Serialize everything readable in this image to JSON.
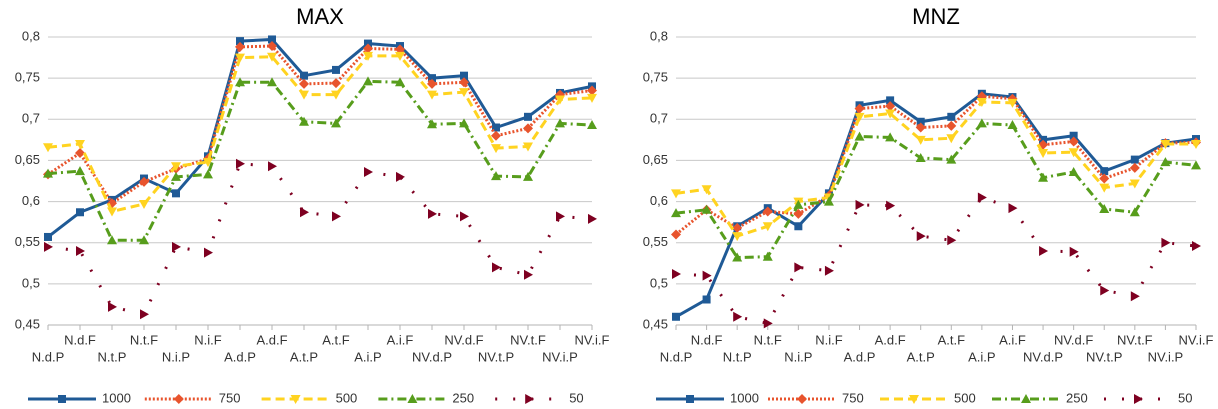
{
  "chart_data": [
    {
      "type": "line",
      "title": "MAX",
      "categories": [
        "N.d.P",
        "N.d.F",
        "N.t.P",
        "N.t.F",
        "N.i.P",
        "N.i.F",
        "A.d.P",
        "A.d.F",
        "A.t.P",
        "A.t.F",
        "A.i.P",
        "A.i.F",
        "NV.d.P",
        "NV.d.F",
        "NV.t.P",
        "NV.t.F",
        "NV.i.P",
        "NV.i.F"
      ],
      "ylim": [
        0.45,
        0.8
      ],
      "yticks": [
        {
          "value": 0.45,
          "label": "0,45"
        },
        {
          "value": 0.5,
          "label": "0,5"
        },
        {
          "value": 0.55,
          "label": "0,55"
        },
        {
          "value": 0.6,
          "label": "0,6"
        },
        {
          "value": 0.65,
          "label": "0,65"
        },
        {
          "value": 0.7,
          "label": "0,7"
        },
        {
          "value": 0.75,
          "label": "0,75"
        },
        {
          "value": 0.8,
          "label": "0,8"
        }
      ],
      "grid": true,
      "legend": "bottom",
      "series": [
        {
          "name": "1000",
          "color": "#1f5a96",
          "marker": "square",
          "dash": "solid",
          "values": [
            0.557,
            0.587,
            0.602,
            0.628,
            0.61,
            0.655,
            0.795,
            0.797,
            0.753,
            0.76,
            0.792,
            0.789,
            0.75,
            0.753,
            0.69,
            0.703,
            0.732,
            0.74
          ]
        },
        {
          "name": "750",
          "color": "#e8542d",
          "marker": "diamond",
          "dash": "dotted",
          "values": [
            0.633,
            0.659,
            0.598,
            0.624,
            0.64,
            0.652,
            0.788,
            0.789,
            0.743,
            0.744,
            0.786,
            0.785,
            0.743,
            0.745,
            0.68,
            0.689,
            0.73,
            0.735
          ]
        },
        {
          "name": "500",
          "color": "#ffd320",
          "marker": "triangle-down",
          "dash": "dashed",
          "values": [
            0.666,
            0.67,
            0.588,
            0.597,
            0.643,
            0.648,
            0.775,
            0.776,
            0.73,
            0.73,
            0.777,
            0.777,
            0.73,
            0.733,
            0.665,
            0.667,
            0.724,
            0.726
          ]
        },
        {
          "name": "250",
          "color": "#579d1c",
          "marker": "triangle-up",
          "dash": "dashdot",
          "values": [
            0.634,
            0.637,
            0.553,
            0.553,
            0.63,
            0.633,
            0.745,
            0.745,
            0.697,
            0.695,
            0.746,
            0.745,
            0.694,
            0.695,
            0.631,
            0.63,
            0.695,
            0.693
          ]
        },
        {
          "name": "50",
          "color": "#7e0021",
          "marker": "triangle-right",
          "dash": "sparse",
          "values": [
            0.545,
            0.54,
            0.472,
            0.463,
            0.545,
            0.538,
            0.646,
            0.643,
            0.587,
            0.582,
            0.636,
            0.63,
            0.585,
            0.582,
            0.52,
            0.511,
            0.582,
            0.579
          ]
        }
      ]
    },
    {
      "type": "line",
      "title": "MNZ",
      "categories": [
        "N.d.P",
        "N.d.F",
        "N.t.P",
        "N.t.F",
        "N.i.P",
        "N.i.F",
        "A.d.P",
        "A.d.F",
        "A.t.P",
        "A.t.F",
        "A.i.P",
        "A.i.F",
        "NV.d.P",
        "NV.d.F",
        "NV.t.P",
        "NV.t.F",
        "NV.i.P",
        "NV.i.F"
      ],
      "ylim": [
        0.45,
        0.8
      ],
      "yticks": [
        {
          "value": 0.45,
          "label": "0,45"
        },
        {
          "value": 0.5,
          "label": "0,5"
        },
        {
          "value": 0.55,
          "label": "0,55"
        },
        {
          "value": 0.6,
          "label": "0,6"
        },
        {
          "value": 0.65,
          "label": "0,65"
        },
        {
          "value": 0.7,
          "label": "0,7"
        },
        {
          "value": 0.75,
          "label": "0,75"
        },
        {
          "value": 0.8,
          "label": "0,8"
        }
      ],
      "grid": true,
      "legend": "bottom",
      "series": [
        {
          "name": "1000",
          "color": "#1f5a96",
          "marker": "square",
          "dash": "solid",
          "values": [
            0.46,
            0.481,
            0.57,
            0.592,
            0.57,
            0.61,
            0.717,
            0.723,
            0.697,
            0.703,
            0.731,
            0.727,
            0.675,
            0.68,
            0.637,
            0.651,
            0.671,
            0.676
          ]
        },
        {
          "name": "750",
          "color": "#e8542d",
          "marker": "diamond",
          "dash": "dotted",
          "values": [
            0.56,
            0.59,
            0.568,
            0.588,
            0.585,
            0.607,
            0.713,
            0.716,
            0.69,
            0.692,
            0.728,
            0.725,
            0.669,
            0.673,
            0.628,
            0.641,
            0.671,
            0.672
          ]
        },
        {
          "name": "500",
          "color": "#ffd320",
          "marker": "triangle-down",
          "dash": "dashed",
          "values": [
            0.61,
            0.615,
            0.558,
            0.57,
            0.6,
            0.605,
            0.703,
            0.707,
            0.675,
            0.677,
            0.721,
            0.72,
            0.659,
            0.66,
            0.617,
            0.622,
            0.67,
            0.67
          ]
        },
        {
          "name": "250",
          "color": "#579d1c",
          "marker": "triangle-up",
          "dash": "dashdot",
          "values": [
            0.586,
            0.59,
            0.532,
            0.533,
            0.596,
            0.6,
            0.679,
            0.678,
            0.653,
            0.651,
            0.695,
            0.693,
            0.629,
            0.636,
            0.591,
            0.587,
            0.648,
            0.644
          ]
        },
        {
          "name": "50",
          "color": "#7e0021",
          "marker": "triangle-right",
          "dash": "sparse",
          "values": [
            0.512,
            0.51,
            0.46,
            0.452,
            0.52,
            0.516,
            0.596,
            0.595,
            0.558,
            0.553,
            0.605,
            0.592,
            0.54,
            0.539,
            0.492,
            0.485,
            0.55,
            0.546
          ]
        }
      ]
    }
  ]
}
